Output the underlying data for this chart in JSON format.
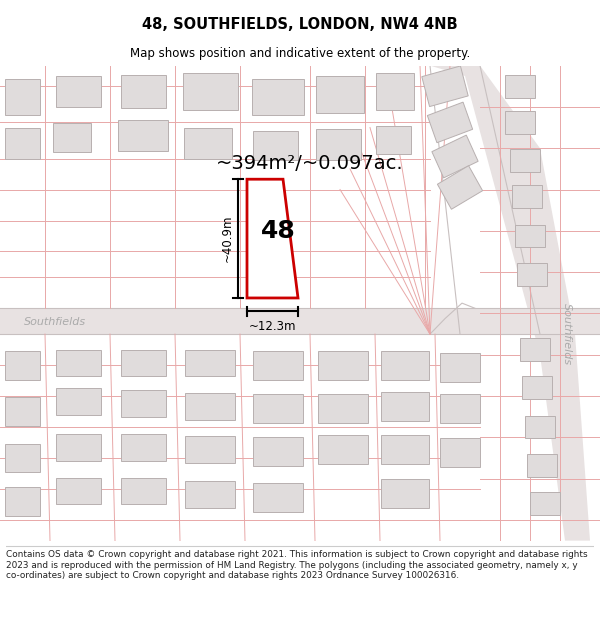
{
  "title": "48, SOUTHFIELDS, LONDON, NW4 4NB",
  "subtitle": "Map shows position and indicative extent of the property.",
  "area_text": "~394m²/~0.097ac.",
  "width_label": "~12.3m",
  "height_label": "~40.9m",
  "property_number": "48",
  "footer_text": "Contains OS data © Crown copyright and database right 2021. This information is subject to Crown copyright and database rights 2023 and is reproduced with the permission of HM Land Registry. The polygons (including the associated geometry, namely x, y co-ordinates) are subject to Crown copyright and database rights 2023 Ordnance Survey 100026316.",
  "street_label_left": "Southfields",
  "street_label_right": "Southfields",
  "bg_color": "#ffffff",
  "map_bg": "#f8f5f5",
  "building_fc": "#e0dcdc",
  "building_ec": "#b8b0b0",
  "property_fc": "#ffffff",
  "property_ec": "#cc0000",
  "dim_color": "#000000",
  "road_fc": "#e8e2e2",
  "road_ec": "#c8c0c0",
  "pink": "#e8a8a8",
  "street_color": "#aaaaaa",
  "text_color": "#000000"
}
